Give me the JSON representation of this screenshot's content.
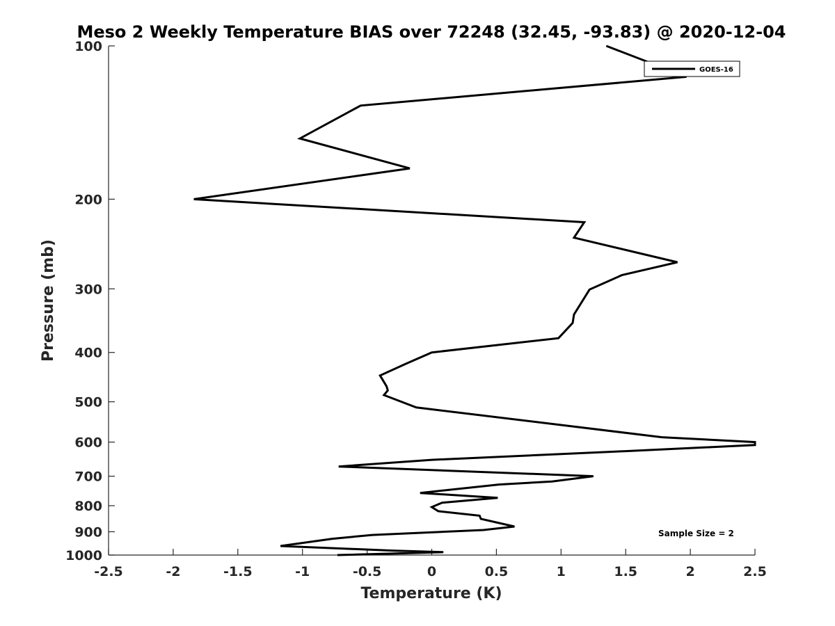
{
  "chart_data": {
    "type": "line",
    "title": "Meso 2 Weekly Temperature BIAS over 72248 (32.45, -93.83) @ 2020-12-04",
    "xlabel": "Temperature (K)",
    "ylabel": "Pressure (mb)",
    "xlim": [
      -2.5,
      2.5
    ],
    "ylim": [
      100,
      1000
    ],
    "y_scale": "log",
    "y_reversed": true,
    "grid": false,
    "x_ticks": [
      "-2.5",
      "-2",
      "-1.5",
      "-1",
      "-0.5",
      "0",
      "0.5",
      "1",
      "1.5",
      "2",
      "2.5"
    ],
    "y_ticks": [
      "100",
      "200",
      "300",
      "400",
      "500",
      "600",
      "700",
      "800",
      "900",
      "1000"
    ],
    "legend_position": "top-right",
    "series": [
      {
        "name": "GOES-16",
        "color": "#000000",
        "points": [
          [
            1.35,
            100
          ],
          [
            1.97,
            115
          ],
          [
            -0.55,
            131
          ],
          [
            -1.02,
            152
          ],
          [
            -0.17,
            174
          ],
          [
            -1.84,
            200
          ],
          [
            1.18,
            222
          ],
          [
            1.1,
            238
          ],
          [
            1.9,
            266
          ],
          [
            1.47,
            282
          ],
          [
            1.22,
            301
          ],
          [
            1.1,
            337
          ],
          [
            1.09,
            350
          ],
          [
            0.98,
            375
          ],
          [
            0.0,
            400
          ],
          [
            -0.2,
            421
          ],
          [
            -0.4,
            444
          ],
          [
            -0.35,
            466
          ],
          [
            -0.34,
            475
          ],
          [
            -0.37,
            485
          ],
          [
            -0.12,
            513
          ],
          [
            1.78,
            587
          ],
          [
            2.5,
            600
          ],
          [
            2.5,
            608
          ],
          [
            1.5,
            625
          ],
          [
            0.0,
            650
          ],
          [
            -0.72,
            670
          ],
          [
            1.25,
            700
          ],
          [
            0.93,
            717
          ],
          [
            0.52,
            727
          ],
          [
            -0.09,
            755
          ],
          [
            0.51,
            772
          ],
          [
            0.08,
            789
          ],
          [
            0.0,
            805
          ],
          [
            0.05,
            820
          ],
          [
            0.37,
            837
          ],
          [
            0.38,
            849
          ],
          [
            0.64,
            879
          ],
          [
            0.4,
            893
          ],
          [
            -0.46,
            913
          ],
          [
            -0.77,
            929
          ],
          [
            -1.17,
            960
          ],
          [
            -0.3,
            980
          ],
          [
            0.09,
            987
          ],
          [
            -0.73,
            1000
          ]
        ]
      }
    ],
    "annotations": [
      "Sample Size = 2"
    ]
  }
}
